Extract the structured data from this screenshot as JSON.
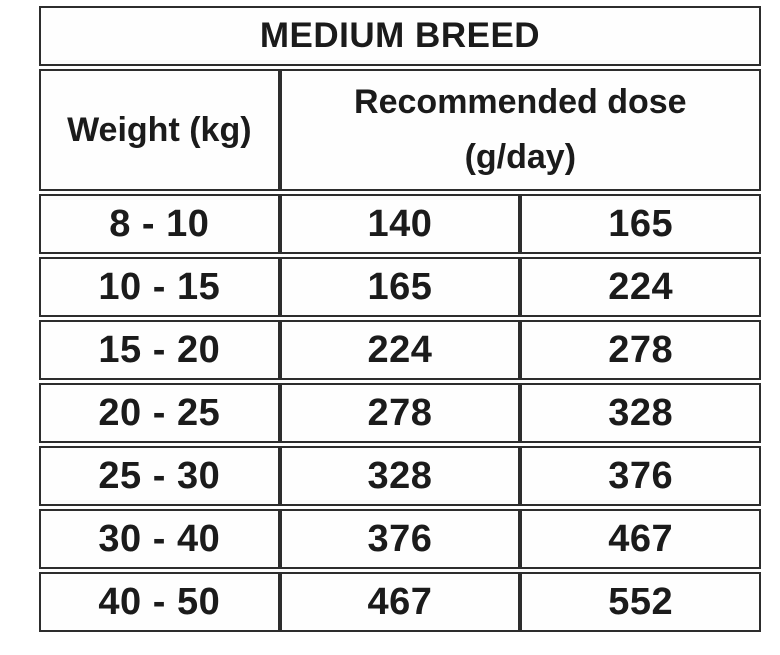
{
  "title": "MEDIUM BREED",
  "headers": {
    "weight": "Weight (kg)",
    "dose_line1": "Recommended dose",
    "dose_line2": "(g/day)"
  },
  "colors": {
    "border": "#2d2d2d",
    "text": "#1b1b1b",
    "background": "#ffffff"
  },
  "chart_data": {
    "type": "table",
    "title": "MEDIUM BREED",
    "column_headers": [
      "Weight (kg)",
      "Recommended dose (g/day)",
      "Recommended dose (g/day)"
    ],
    "header_note": "Recommended dose (g/day) header spans the two dose columns",
    "rows": [
      [
        "8 - 10",
        "140",
        "165"
      ],
      [
        "10 - 15",
        "165",
        "224"
      ],
      [
        "15 - 20",
        "224",
        "278"
      ],
      [
        "20 - 25",
        "278",
        "328"
      ],
      [
        "25 - 30",
        "328",
        "376"
      ],
      [
        "30 - 40",
        "376",
        "467"
      ],
      [
        "40 - 50",
        "467",
        "552"
      ]
    ]
  }
}
